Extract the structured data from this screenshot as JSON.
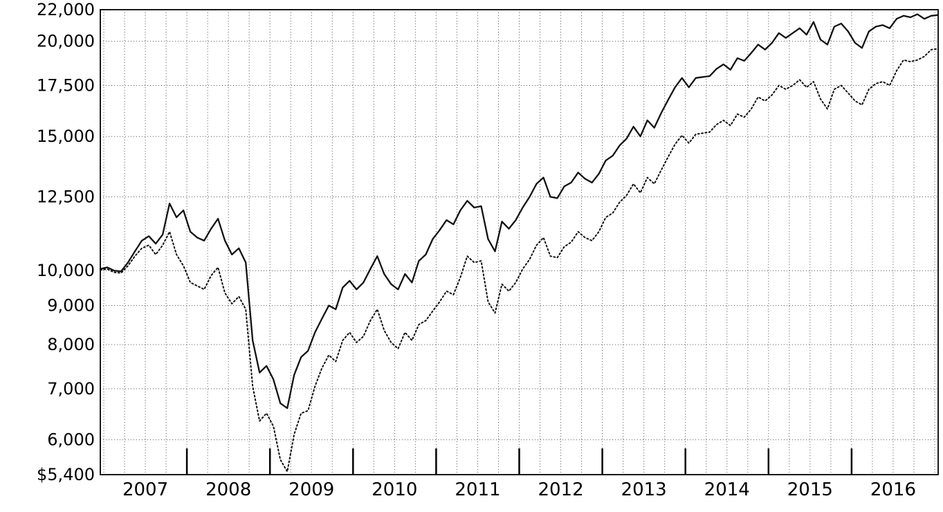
{
  "colors": {
    "background": "#ffffff",
    "axis": "#000000",
    "grid": "#555555",
    "series": "#111111"
  },
  "chart_data": {
    "type": "line",
    "title": "",
    "xlabel": "",
    "ylabel": "",
    "y_scale": "log",
    "ylim": [
      5400,
      22000
    ],
    "y_ticks": [
      {
        "value": 22000,
        "label": "22,000"
      },
      {
        "value": 20000,
        "label": "20,000"
      },
      {
        "value": 17500,
        "label": "17,500"
      },
      {
        "value": 15000,
        "label": "15,000"
      },
      {
        "value": 12500,
        "label": "12,500"
      },
      {
        "value": 10000,
        "label": "10,000"
      },
      {
        "value": 9000,
        "label": "9,000"
      },
      {
        "value": 8000,
        "label": "8,000"
      },
      {
        "value": 7000,
        "label": "7,000"
      },
      {
        "value": 6000,
        "label": "6,000"
      },
      {
        "value": 5400,
        "label": "$5,400"
      }
    ],
    "x_year_labels": [
      "2007",
      "2008",
      "2009",
      "2010",
      "2011",
      "2012",
      "2013",
      "2014",
      "2015",
      "2016"
    ],
    "x_start": 2006.9583,
    "x_end": 2017.0417,
    "frequency": "monthly",
    "grid": {
      "vertical_interval_years": 0.25,
      "style": "dotted",
      "horizontal": true
    },
    "legend": "none",
    "series": [
      {
        "name": "solid-line-series",
        "style": "solid",
        "color": "#111111",
        "values": [
          10050,
          10100,
          10000,
          9980,
          10250,
          10600,
          10950,
          11100,
          10850,
          11150,
          12250,
          11750,
          12000,
          11250,
          11050,
          10950,
          11350,
          11700,
          10950,
          10500,
          10700,
          10250,
          8100,
          7350,
          7500,
          7200,
          6700,
          6600,
          7300,
          7700,
          7850,
          8300,
          8650,
          9000,
          8900,
          9500,
          9700,
          9450,
          9650,
          10050,
          10450,
          9900,
          9600,
          9450,
          9900,
          9650,
          10300,
          10500,
          11000,
          11300,
          11650,
          11500,
          12000,
          12350,
          12100,
          12150,
          11000,
          10600,
          11600,
          11350,
          11650,
          12100,
          12500,
          13000,
          13250,
          12500,
          12450,
          12900,
          13050,
          13450,
          13200,
          13050,
          13400,
          13950,
          14150,
          14600,
          14900,
          15450,
          15000,
          15750,
          15400,
          16100,
          16750,
          17400,
          17900,
          17400,
          17900,
          17950,
          18000,
          18400,
          18650,
          18350,
          19000,
          18850,
          19300,
          19800,
          19500,
          19900,
          20500,
          20200,
          20500,
          20800,
          20400,
          21200,
          20100,
          19800,
          20900,
          21100,
          20600,
          19900,
          19600,
          20600,
          20900,
          21000,
          20800,
          21400,
          21600,
          21500,
          21700,
          21400,
          21600,
          21650
        ]
      },
      {
        "name": "dotted-line-series",
        "style": "dotted",
        "color": "#111111",
        "values": [
          10020,
          10050,
          9950,
          9930,
          10150,
          10450,
          10700,
          10800,
          10500,
          10800,
          11250,
          10500,
          10150,
          9650,
          9550,
          9450,
          9850,
          10100,
          9350,
          9050,
          9250,
          8900,
          7050,
          6350,
          6500,
          6250,
          5650,
          5450,
          6100,
          6500,
          6550,
          7050,
          7450,
          7750,
          7600,
          8100,
          8300,
          8050,
          8200,
          8600,
          8900,
          8350,
          8050,
          7900,
          8300,
          8100,
          8500,
          8600,
          8850,
          9100,
          9400,
          9300,
          9800,
          10450,
          10250,
          10300,
          9100,
          8800,
          9600,
          9400,
          9650,
          10050,
          10350,
          10800,
          11050,
          10450,
          10400,
          10750,
          10900,
          11250,
          11050,
          10950,
          11250,
          11750,
          11900,
          12300,
          12550,
          13000,
          12650,
          13250,
          13000,
          13550,
          14100,
          14650,
          15050,
          14700,
          15100,
          15150,
          15200,
          15550,
          15750,
          15500,
          16050,
          15900,
          16300,
          16900,
          16700,
          17000,
          17500,
          17300,
          17500,
          17800,
          17400,
          17700,
          16800,
          16300,
          17300,
          17500,
          17100,
          16700,
          16500,
          17300,
          17600,
          17700,
          17500,
          18300,
          18900,
          18800,
          18900,
          19100,
          19500,
          19550
        ]
      }
    ]
  }
}
